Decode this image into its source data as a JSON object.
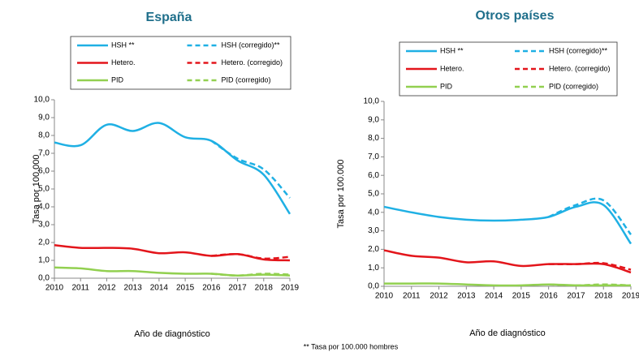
{
  "chart_data": [
    {
      "type": "line",
      "title": "España",
      "xlabel": "Año de diagnóstico",
      "ylabel": "Tasa  por 100.000",
      "x": [
        2010,
        2011,
        2012,
        2013,
        2014,
        2015,
        2016,
        2017,
        2018,
        2019
      ],
      "xlim": [
        2010,
        2019
      ],
      "xticks": [
        2010,
        2011,
        2012,
        2013,
        2014,
        2015,
        2016,
        2017,
        2018,
        2019
      ],
      "ylim": [
        0,
        10
      ],
      "yticks": [
        {
          "value": 0,
          "label": "0,0"
        },
        {
          "value": 1,
          "label": "1,0"
        },
        {
          "value": 2,
          "label": "2,0"
        },
        {
          "value": 3,
          "label": "3,0"
        },
        {
          "value": 4,
          "label": "4,0"
        },
        {
          "value": 5,
          "label": "5,0"
        },
        {
          "value": 6,
          "label": "6,0"
        },
        {
          "value": 7,
          "label": "7,0"
        },
        {
          "value": 8,
          "label": "8,0"
        },
        {
          "value": 9,
          "label": "9,0"
        },
        {
          "value": 10,
          "label": "10,0"
        }
      ],
      "grid": false,
      "legend": "top",
      "series": [
        {
          "name": "HSH **",
          "color": "#1fb0e4",
          "style": "solid",
          "values": [
            7.6,
            7.45,
            8.6,
            8.25,
            8.7,
            7.9,
            7.7,
            6.6,
            5.8,
            3.6
          ]
        },
        {
          "name": "HSH (corregido)**",
          "color": "#1fb0e4",
          "style": "dashed",
          "values": [
            null,
            null,
            null,
            null,
            null,
            null,
            7.7,
            6.7,
            6.1,
            4.5
          ]
        },
        {
          "name": "Hetero.",
          "color": "#e3151b",
          "style": "solid",
          "values": [
            1.85,
            1.7,
            1.7,
            1.65,
            1.4,
            1.45,
            1.25,
            1.35,
            1.05,
            1.0
          ]
        },
        {
          "name": "Hetero. (corregido)",
          "color": "#e3151b",
          "style": "dashed",
          "values": [
            null,
            null,
            null,
            null,
            null,
            null,
            1.25,
            1.35,
            1.1,
            1.2
          ]
        },
        {
          "name": "PID",
          "color": "#92d050",
          "style": "solid",
          "values": [
            0.6,
            0.55,
            0.4,
            0.4,
            0.3,
            0.25,
            0.25,
            0.15,
            0.2,
            0.15
          ]
        },
        {
          "name": "PID (corregido)",
          "color": "#92d050",
          "style": "dashed",
          "values": [
            null,
            null,
            null,
            null,
            null,
            null,
            0.25,
            0.15,
            0.25,
            0.2
          ]
        }
      ]
    },
    {
      "type": "line",
      "title": "Otros países",
      "xlabel": "Año de diagnóstico",
      "ylabel": "Tasa por 100.000",
      "x": [
        2010,
        2011,
        2012,
        2013,
        2014,
        2015,
        2016,
        2017,
        2018,
        2019
      ],
      "xlim": [
        2010,
        2019
      ],
      "xticks": [
        2010,
        2011,
        2012,
        2013,
        2014,
        2015,
        2016,
        2017,
        2018,
        2019
      ],
      "ylim": [
        0,
        10
      ],
      "yticks": [
        {
          "value": 0,
          "label": "0,0"
        },
        {
          "value": 1,
          "label": "1,0"
        },
        {
          "value": 2,
          "label": "2,0"
        },
        {
          "value": 3,
          "label": "3,0"
        },
        {
          "value": 4,
          "label": "4,0"
        },
        {
          "value": 5,
          "label": "5,0"
        },
        {
          "value": 6,
          "label": "6,0"
        },
        {
          "value": 7,
          "label": "7,0"
        },
        {
          "value": 8,
          "label": "8,0"
        },
        {
          "value": 9,
          "label": "9,0"
        },
        {
          "value": 10,
          "label": "10,0"
        }
      ],
      "grid": false,
      "legend": "top",
      "series": [
        {
          "name": "HSH **",
          "color": "#1fb0e4",
          "style": "solid",
          "values": [
            4.3,
            4.0,
            3.75,
            3.6,
            3.55,
            3.6,
            3.75,
            4.3,
            4.4,
            2.3
          ]
        },
        {
          "name": "HSH (corregido)**",
          "color": "#1fb0e4",
          "style": "dashed",
          "values": [
            null,
            null,
            null,
            null,
            null,
            null,
            3.75,
            4.4,
            4.65,
            2.8
          ]
        },
        {
          "name": "Hetero.",
          "color": "#e3151b",
          "style": "solid",
          "values": [
            1.95,
            1.65,
            1.55,
            1.3,
            1.35,
            1.1,
            1.2,
            1.2,
            1.2,
            0.75
          ]
        },
        {
          "name": "Hetero. (corregido)",
          "color": "#e3151b",
          "style": "dashed",
          "values": [
            null,
            null,
            null,
            null,
            null,
            null,
            1.2,
            1.2,
            1.25,
            0.9
          ]
        },
        {
          "name": "PID",
          "color": "#92d050",
          "style": "solid",
          "values": [
            0.15,
            0.15,
            0.15,
            0.1,
            0.05,
            0.05,
            0.1,
            0.05,
            0.05,
            0.05
          ]
        },
        {
          "name": "PID (corregido)",
          "color": "#92d050",
          "style": "dashed",
          "values": [
            null,
            null,
            null,
            null,
            null,
            null,
            0.1,
            0.05,
            0.1,
            0.05
          ]
        }
      ]
    }
  ],
  "footnote": "** Tasa por 100.000 hombres"
}
